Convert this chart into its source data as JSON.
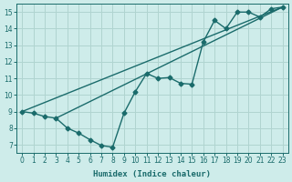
{
  "xlabel": "Humidex (Indice chaleur)",
  "background_color": "#ceecea",
  "grid_color": "#b0d4d0",
  "line_color": "#1a6b6b",
  "xlim": [
    -0.5,
    23.5
  ],
  "ylim": [
    6.5,
    15.5
  ],
  "xticks": [
    0,
    1,
    2,
    3,
    4,
    5,
    6,
    7,
    8,
    9,
    10,
    11,
    12,
    13,
    14,
    15,
    16,
    17,
    18,
    19,
    20,
    21,
    22,
    23
  ],
  "yticks": [
    7,
    8,
    9,
    10,
    11,
    12,
    13,
    14,
    15
  ],
  "curve1_x": [
    0,
    1,
    2,
    3,
    4,
    5,
    6,
    7,
    8,
    9,
    10,
    11,
    12,
    13,
    14,
    15,
    16,
    17,
    18,
    19,
    20,
    21,
    22,
    23
  ],
  "curve1_y": [
    9.0,
    8.9,
    8.7,
    8.6,
    8.0,
    7.7,
    7.3,
    6.95,
    6.85,
    8.9,
    10.2,
    11.3,
    11.0,
    11.05,
    10.7,
    10.65,
    13.2,
    14.5,
    14.0,
    15.0,
    15.0,
    14.7,
    15.2,
    15.3
  ],
  "line1_x": [
    0,
    23
  ],
  "line1_y": [
    9.0,
    15.3
  ],
  "line2_x": [
    3,
    23
  ],
  "line2_y": [
    8.6,
    15.3
  ],
  "line_width": 1.0,
  "marker": "D",
  "marker_size": 2.5
}
